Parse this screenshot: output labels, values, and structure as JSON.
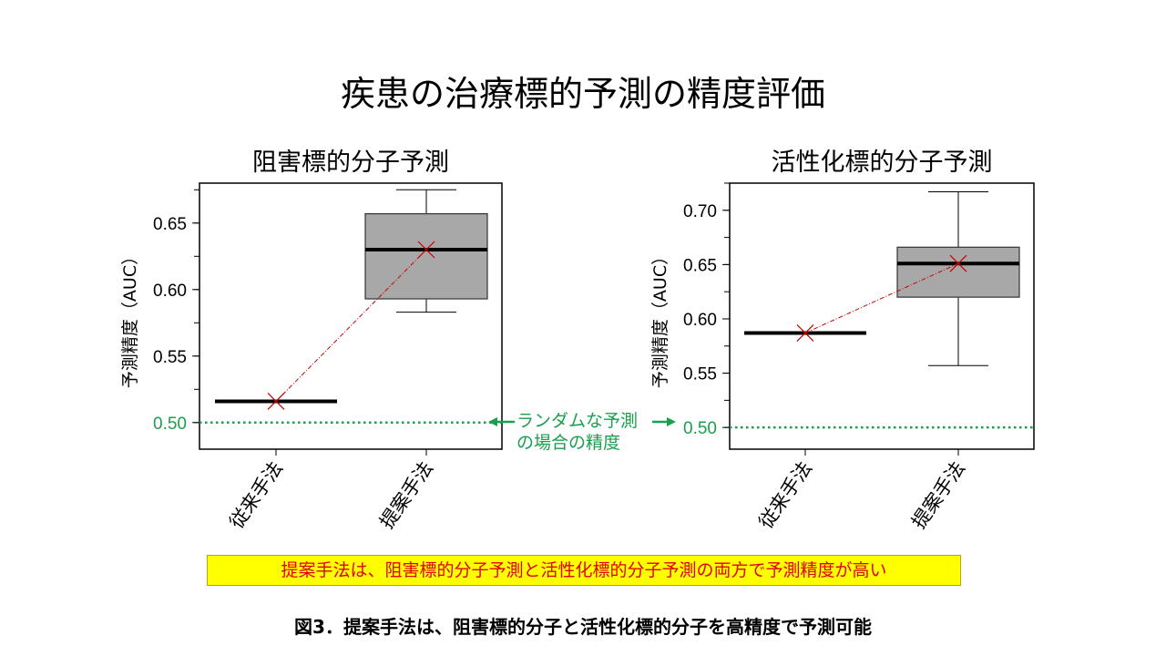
{
  "main_title": "疾患の治療標的予測の精度評価",
  "annotation": {
    "line1": "ランダムな予測",
    "line2": "の場合の精度"
  },
  "conclusion": "提案手法は、阻害標的分子予測と活性化標的分子予測の両方で予測精度が高い",
  "caption": "図3．提案手法は、阻害標的分子と活性化標的分子を高精度で予測可能",
  "colors": {
    "random_line": "#1a9f4e",
    "box_fill": "#a8a8a8",
    "mean_marker": "#cc0000",
    "banner_bg": "#ffff00",
    "banner_text": "#e0000f"
  },
  "chart_data": [
    {
      "type": "box",
      "title": "阻害標的分子予測",
      "ylabel": "予測精度（AUC）",
      "categories": [
        "従来手法",
        "提案手法"
      ],
      "ylim": [
        0.48,
        0.68
      ],
      "yticks": [
        0.5,
        0.55,
        0.6,
        0.65
      ],
      "ytick_labels": [
        "0.50",
        "0.55",
        "0.60",
        "0.65"
      ],
      "random_baseline": 0.5,
      "boxes": [
        {
          "category": "従来手法",
          "min": 0.516,
          "q1": 0.516,
          "median": 0.516,
          "q3": 0.516,
          "max": 0.516,
          "mean": 0.516
        },
        {
          "category": "提案手法",
          "min": 0.583,
          "q1": 0.593,
          "median": 0.63,
          "q3": 0.657,
          "max": 0.675,
          "mean": 0.63
        }
      ]
    },
    {
      "type": "box",
      "title": "活性化標的分子予測",
      "ylabel": "予測精度（AUC）",
      "categories": [
        "従来手法",
        "提案手法"
      ],
      "ylim": [
        0.48,
        0.725
      ],
      "yticks": [
        0.5,
        0.55,
        0.6,
        0.65,
        0.7
      ],
      "ytick_labels": [
        "0.50",
        "0.55",
        "0.60",
        "0.65",
        "0.70"
      ],
      "random_baseline": 0.5,
      "boxes": [
        {
          "category": "従来手法",
          "min": 0.587,
          "q1": 0.587,
          "median": 0.587,
          "q3": 0.587,
          "max": 0.587,
          "mean": 0.587
        },
        {
          "category": "提案手法",
          "min": 0.557,
          "q1": 0.62,
          "median": 0.651,
          "q3": 0.666,
          "max": 0.717,
          "mean": 0.651
        }
      ]
    }
  ]
}
